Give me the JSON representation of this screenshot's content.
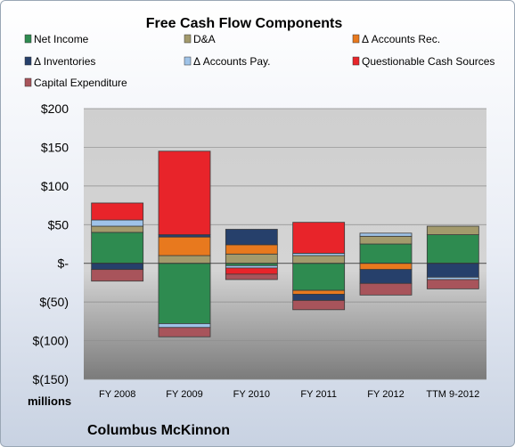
{
  "chart_data": {
    "type": "bar",
    "stacked": true,
    "title": "Free Cash Flow Components",
    "units_label": "millions",
    "company": "Columbus McKinnon",
    "categories": [
      "FY 2008",
      "FY 2009",
      "FY 2010",
      "FY 2011",
      "FY 2012",
      "TTM 9-2012"
    ],
    "ylim": [
      -150,
      200
    ],
    "yticks": [
      200,
      150,
      100,
      50,
      0,
      -50,
      -100,
      -150
    ],
    "ytick_labels": [
      "$200",
      "$150",
      "$100",
      "$50",
      "$-",
      "$(50)",
      "$(100)",
      "$(150)"
    ],
    "grid": true,
    "legend_position": "top",
    "series": [
      {
        "name": "Net Income",
        "color": "#2e8b50",
        "values": [
          40,
          -78,
          -3,
          -35,
          25,
          37
        ]
      },
      {
        "name": "D&A",
        "color": "#a39a6c",
        "values": [
          8,
          10,
          12,
          10,
          10,
          11
        ]
      },
      {
        "name": "Δ Accounts Rec.",
        "color": "#e8791e",
        "values": [
          0,
          24,
          12,
          -5,
          -8,
          0
        ]
      },
      {
        "name": "Δ Inventories",
        "color": "#26406b",
        "values": [
          -8,
          3,
          20,
          -8,
          -18,
          -18
        ]
      },
      {
        "name": "Δ Accounts Pay.",
        "color": "#9fc3e8",
        "values": [
          8,
          -5,
          -3,
          3,
          4,
          -3
        ]
      },
      {
        "name": "Questionable Cash Sources",
        "color": "#e8242a",
        "values": [
          22,
          108,
          -8,
          40,
          0,
          0
        ]
      },
      {
        "name": "Capital Expenditure",
        "color": "#a8545b",
        "values": [
          -15,
          -12,
          -7,
          -12,
          -15,
          -12
        ]
      }
    ]
  }
}
